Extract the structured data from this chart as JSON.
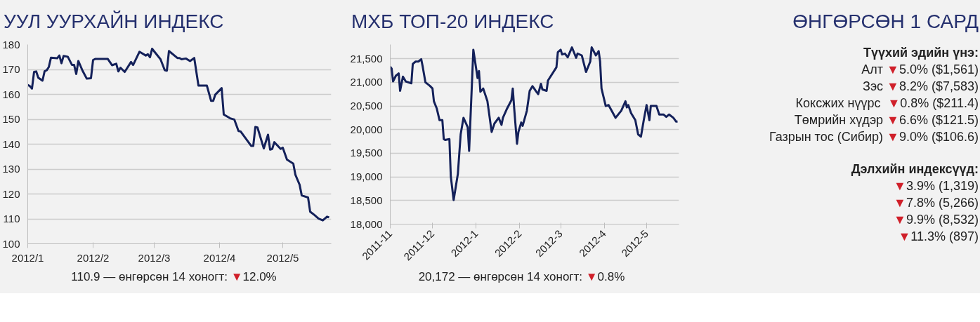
{
  "chart_data": [
    {
      "type": "line",
      "title": "УУЛ УУРХАЙН ИНДЕКС",
      "x": [
        "2012-01-01",
        "2012-01-02",
        "2012-01-03",
        "2012-01-04",
        "2012-01-05",
        "2012-01-06",
        "2012-01-08",
        "2012-01-09",
        "2012-01-10",
        "2012-01-11",
        "2012-01-12",
        "2012-01-15",
        "2012-01-16",
        "2012-01-17",
        "2012-01-18",
        "2012-01-20",
        "2012-01-22",
        "2012-01-23",
        "2012-01-24",
        "2012-01-25",
        "2012-01-27",
        "2012-01-29",
        "2012-01-31",
        "2012-02-01",
        "2012-02-02",
        "2012-02-06",
        "2012-02-08",
        "2012-02-10",
        "2012-02-12",
        "2012-02-13",
        "2012-02-14",
        "2012-02-16",
        "2012-02-19",
        "2012-02-20",
        "2012-02-23",
        "2012-02-26",
        "2012-02-27",
        "2012-02-28",
        "2012-02-29",
        "2012-03-04",
        "2012-03-06",
        "2012-03-07",
        "2012-03-08",
        "2012-03-12",
        "2012-03-13",
        "2012-03-14",
        "2012-03-16",
        "2012-03-18",
        "2012-03-20",
        "2012-03-22",
        "2012-03-26",
        "2012-03-28",
        "2012-03-29",
        "2012-03-30",
        "2012-04-02",
        "2012-04-03",
        "2012-04-06",
        "2012-04-08",
        "2012-04-10",
        "2012-04-11",
        "2012-04-16",
        "2012-04-17",
        "2012-04-18",
        "2012-04-19",
        "2012-04-22",
        "2012-04-24",
        "2012-04-25",
        "2012-04-26",
        "2012-04-27",
        "2012-04-30",
        "2012-05-01",
        "2012-05-03",
        "2012-05-06",
        "2012-05-07",
        "2012-05-09",
        "2012-05-10",
        "2012-05-13",
        "2012-05-14",
        "2012-05-16",
        "2012-05-18",
        "2012-05-20",
        "2012-05-22",
        "2012-05-23"
      ],
      "series": [
        {
          "color": "#14215a",
          "values": [
            163.8,
            163.3,
            162.3,
            169.0,
            169.2,
            166.7,
            165.5,
            169.3,
            169.7,
            171.0,
            174.7,
            174.5,
            175.6,
            172.5,
            175.4,
            175.1,
            171.8,
            171.8,
            168.2,
            173.4,
            169.5,
            166.3,
            166.5,
            173.8,
            174.2,
            174.2,
            174.2,
            171.7,
            172.3,
            169.2,
            170.7,
            169.0,
            173.0,
            171.8,
            177.1,
            175.6,
            176.1,
            174.9,
            178.3,
            174.1,
            169.7,
            169.5,
            177.4,
            174.6,
            174.6,
            174.1,
            174.4,
            173.4,
            174.6,
            163.5,
            163.5,
            157.4,
            157.4,
            159.9,
            162.5,
            151.9,
            150.4,
            149.9,
            145.3,
            145.1,
            139.3,
            139.3,
            146.9,
            146.7,
            138.3,
            143.8,
            137.8,
            138.1,
            140.8,
            138.1,
            138.6,
            133.8,
            132.2,
            127.7,
            123.7,
            119.4,
            118.6,
            112.9,
            111.6,
            110.1,
            109.4,
            110.9,
            110.6
          ]
        }
      ],
      "xlim": [
        "2012-01-01",
        "2012-05-24"
      ],
      "xticks": [
        {
          "value": "2012-01-01",
          "label": "2012/1"
        },
        {
          "value": "2012-02-01",
          "label": "2012/2"
        },
        {
          "value": "2012-03-01",
          "label": "2012/3"
        },
        {
          "value": "2012-04-01",
          "label": "2012/4"
        },
        {
          "value": "2012-05-01",
          "label": "2012/5"
        }
      ],
      "ylim": [
        100,
        180
      ],
      "yticks": [
        100,
        110,
        120,
        130,
        140,
        150,
        160,
        170,
        180
      ],
      "grid": "y",
      "annotations": [
        "110.9 — өнгөрсөн 14 хоногт: ▼12.0%"
      ]
    },
    {
      "type": "line",
      "title": "МХБ ТОП-20 ИНДЕКС",
      "x": [
        "2011-11-01",
        "2011-11-02",
        "2011-11-03",
        "2011-11-05",
        "2011-11-07",
        "2011-11-08",
        "2011-11-10",
        "2011-11-12",
        "2011-11-16",
        "2011-11-17",
        "2011-11-19",
        "2011-11-21",
        "2011-11-23",
        "2011-11-24",
        "2011-11-26",
        "2011-11-29",
        "2011-12-01",
        "2011-12-02",
        "2011-12-04",
        "2011-12-06",
        "2011-12-08",
        "2011-12-09",
        "2011-12-10",
        "2011-12-13",
        "2011-12-14",
        "2011-12-16",
        "2011-12-19",
        "2011-12-21",
        "2011-12-23",
        "2011-12-26",
        "2011-12-27",
        "2011-12-30",
        "2012-01-02",
        "2012-01-03",
        "2012-01-04",
        "2012-01-06",
        "2012-01-09",
        "2012-01-12",
        "2012-01-14",
        "2012-01-17",
        "2012-01-19",
        "2012-01-20",
        "2012-01-23",
        "2012-01-26",
        "2012-01-27",
        "2012-01-28",
        "2012-01-30",
        "2012-01-31",
        "2012-02-02",
        "2012-02-03",
        "2012-02-06",
        "2012-02-08",
        "2012-02-10",
        "2012-02-14",
        "2012-02-16",
        "2012-02-17",
        "2012-02-20",
        "2012-02-21",
        "2012-02-27",
        "2012-02-28",
        "2012-03-01",
        "2012-03-02",
        "2012-03-04",
        "2012-03-06",
        "2012-03-09",
        "2012-03-12",
        "2012-03-13",
        "2012-03-16",
        "2012-03-19",
        "2012-03-22",
        "2012-03-23",
        "2012-03-26",
        "2012-03-28",
        "2012-03-29",
        "2012-03-30",
        "2012-04-02",
        "2012-04-04",
        "2012-04-09",
        "2012-04-13",
        "2012-04-16",
        "2012-04-17",
        "2012-04-18",
        "2012-04-20",
        "2012-04-23",
        "2012-04-25",
        "2012-04-27",
        "2012-04-29",
        "2012-05-01",
        "2012-05-03",
        "2012-05-04",
        "2012-05-08",
        "2012-05-10",
        "2012-05-13",
        "2012-05-15",
        "2012-05-17",
        "2012-05-20",
        "2012-05-22",
        "2012-05-23"
      ],
      "series": [
        {
          "color": "#14215a",
          "values": [
            21330,
            21290,
            21020,
            21140,
            21190,
            20820,
            21120,
            21020,
            20980,
            21390,
            21440,
            21440,
            21490,
            21340,
            21000,
            20930,
            20870,
            20600,
            20450,
            20200,
            20200,
            19800,
            19780,
            19800,
            19010,
            18510,
            19060,
            19900,
            20250,
            20050,
            19550,
            21690,
            21090,
            21240,
            20800,
            20870,
            20600,
            19950,
            20130,
            20250,
            20100,
            20250,
            20450,
            20620,
            20870,
            20450,
            19700,
            19950,
            20150,
            20080,
            20400,
            20820,
            20920,
            20750,
            20970,
            20850,
            20820,
            21040,
            21320,
            21640,
            21690,
            21590,
            21610,
            21530,
            21740,
            21520,
            21610,
            21570,
            21220,
            21440,
            21740,
            21570,
            21660,
            21440,
            20870,
            20500,
            20520,
            20250,
            20400,
            20600,
            20470,
            20520,
            20350,
            20200,
            19900,
            19850,
            20200,
            20520,
            20200,
            20500,
            20500,
            20320,
            20320,
            20270,
            20320,
            20250,
            20170,
            20172
          ]
        }
      ],
      "xlim": [
        "2011-11-01",
        "2012-05-24"
      ],
      "xticks": [
        {
          "value": "2011-11-01",
          "label": "2011-11"
        },
        {
          "value": "2011-12-01",
          "label": "2011-12"
        },
        {
          "value": "2012-01-01",
          "label": "2012-1"
        },
        {
          "value": "2012-02-01",
          "label": "2012-2"
        },
        {
          "value": "2012-03-01",
          "label": "2012-3"
        },
        {
          "value": "2012-04-01",
          "label": "2012-4"
        },
        {
          "value": "2012-05-01",
          "label": "2012-5"
        }
      ],
      "ylim": [
        18000,
        21800
      ],
      "yticks": [
        {
          "value": 18000,
          "label": "18,000"
        },
        {
          "value": 18500,
          "label": "18,500"
        },
        {
          "value": 19000,
          "label": "19,000"
        },
        {
          "value": 19500,
          "label": "19,500"
        },
        {
          "value": 20000,
          "label": "20,000"
        },
        {
          "value": 20500,
          "label": "20,500"
        },
        {
          "value": 21000,
          "label": "21,000"
        },
        {
          "value": 21500,
          "label": "21,500"
        }
      ],
      "grid": "y",
      "annotations": [
        "20,172 — өнгөрсөн 14 хоногт: ▼0.8%"
      ]
    },
    {
      "type": "other",
      "title": "ӨНГӨРСӨН 1 САРД",
      "annotations": [
        "Түүхий эдийн үнэ:",
        "Алт ▼5.0% ($1,561)",
        "Зэс ▼8.2% ($7,583)",
        "Коксжих нүүрс  ▼0.8% ($211.4)",
        "Төмрийн хүдэр ▼6.6% ($121.5)",
        "Газрын тос (Сибир) ▼9.0% ($106.6)",
        "Дэлхийн индексүүд:",
        "▼3.9% (1,319)",
        "▼7.8% (5,266)",
        "▼9.9% (8,532)",
        "▼11.3% (897)"
      ]
    }
  ]
}
